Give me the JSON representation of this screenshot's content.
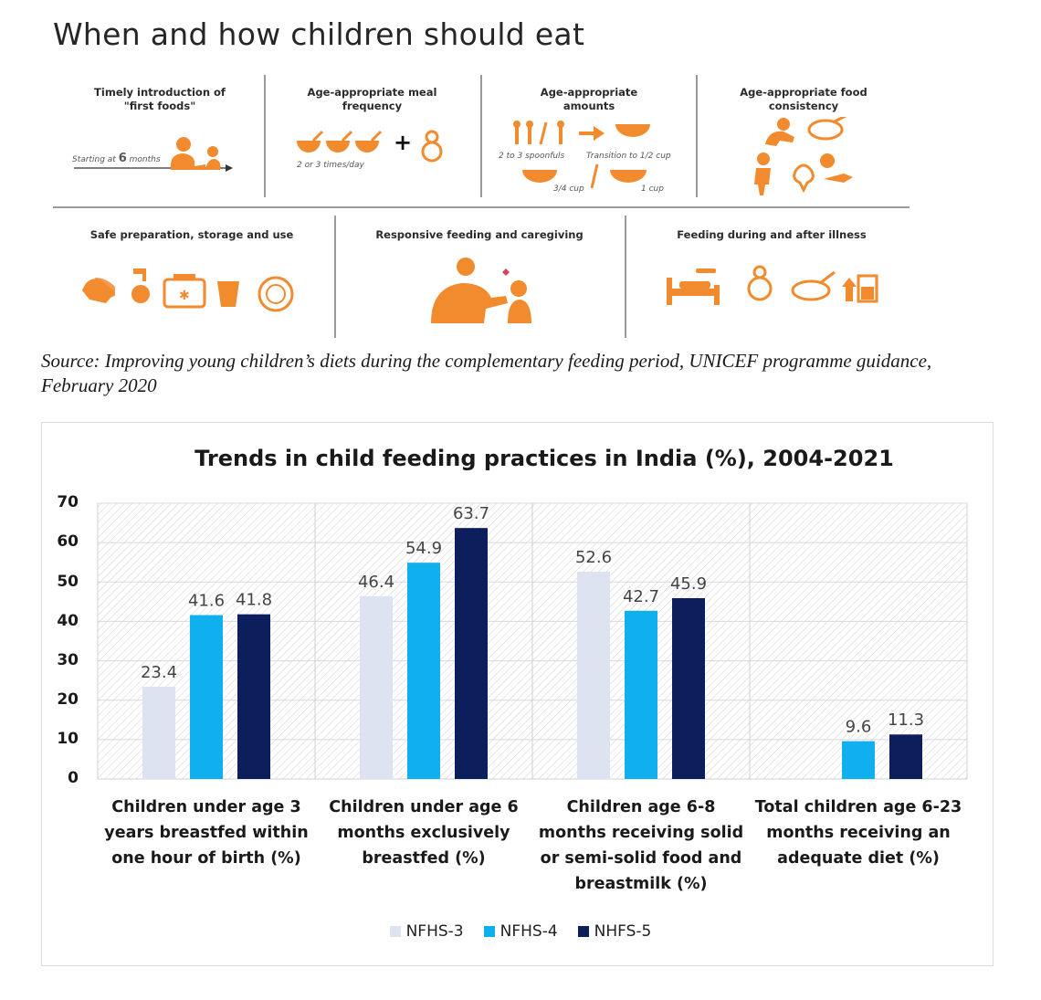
{
  "infographic": {
    "title": "When and how children should eat",
    "accent_color": "#f28a2e",
    "panels_row1": [
      {
        "title": "Timely introduction of\n\"first foods\"",
        "captions": [
          "Starting at",
          "6",
          "months"
        ],
        "icons": [
          "feeding-adult-child-icon"
        ]
      },
      {
        "title": "Age-appropriate meal\nfrequency",
        "captions": [
          "2 or 3 times/day"
        ],
        "icons": [
          "bowl-icon",
          "plus-icon",
          "breastfeeding-icon"
        ]
      },
      {
        "title": "Age-appropriate\namounts",
        "captions": [
          "2 to 3 spoonfuls",
          "Transition to 1/2 cup",
          "3/4 cup",
          "1 cup"
        ],
        "icons": [
          "spoon-icon",
          "arrow-right-icon",
          "bowl-icon"
        ]
      },
      {
        "title": "Age-appropriate food\nconsistency",
        "captions": [],
        "icons": [
          "crawling-baby-icon",
          "pot-icon",
          "toddler-icon",
          "broccoli-icon",
          "fish-icon"
        ]
      }
    ],
    "panels_row2": [
      {
        "title": "Safe preparation, storage and use",
        "icons": [
          "handwash-icon",
          "tap-icon",
          "cooler-box-icon",
          "cup-icon",
          "plate-icon"
        ]
      },
      {
        "title": "Responsive feeding and caregiving",
        "icons": [
          "caregiver-feeding-icon"
        ]
      },
      {
        "title": "Feeding during and after illness",
        "icons": [
          "sick-bed-icon",
          "breastfeeding-icon",
          "pot-icon",
          "increase-drink-icon"
        ]
      }
    ],
    "source": "Source: Improving young children’s diets during the complementary feeding period, UNICEF programme guidance, February 2020"
  },
  "chart_data": {
    "type": "bar",
    "title": "Trends in child feeding practices in India (%), 2004-2021",
    "categories": [
      "Children under age 3 years breastfed within one hour of birth (%)",
      "Children under age 6 months exclusively breastfed (%)",
      "Children age 6-8 months receiving solid or semi-solid food and breastmilk (%)",
      "Total children age 6-23 months receiving an adequate diet (%)"
    ],
    "series": [
      {
        "name": "NFHS-3",
        "color": "#dde3f1",
        "values": [
          23.4,
          46.4,
          52.6,
          null
        ]
      },
      {
        "name": "NFHS-4",
        "color": "#10b0ef",
        "values": [
          41.6,
          54.9,
          42.7,
          9.6
        ]
      },
      {
        "name": "NHFS-5",
        "color": "#0c1f5c",
        "values": [
          41.8,
          63.7,
          45.9,
          11.3
        ]
      }
    ],
    "y_ticks": [
      0,
      10,
      20,
      30,
      40,
      50,
      60,
      70
    ],
    "ylim": [
      0,
      70
    ],
    "grid": "hatched background, vertical separators between categories",
    "legend_position": "bottom-center"
  }
}
